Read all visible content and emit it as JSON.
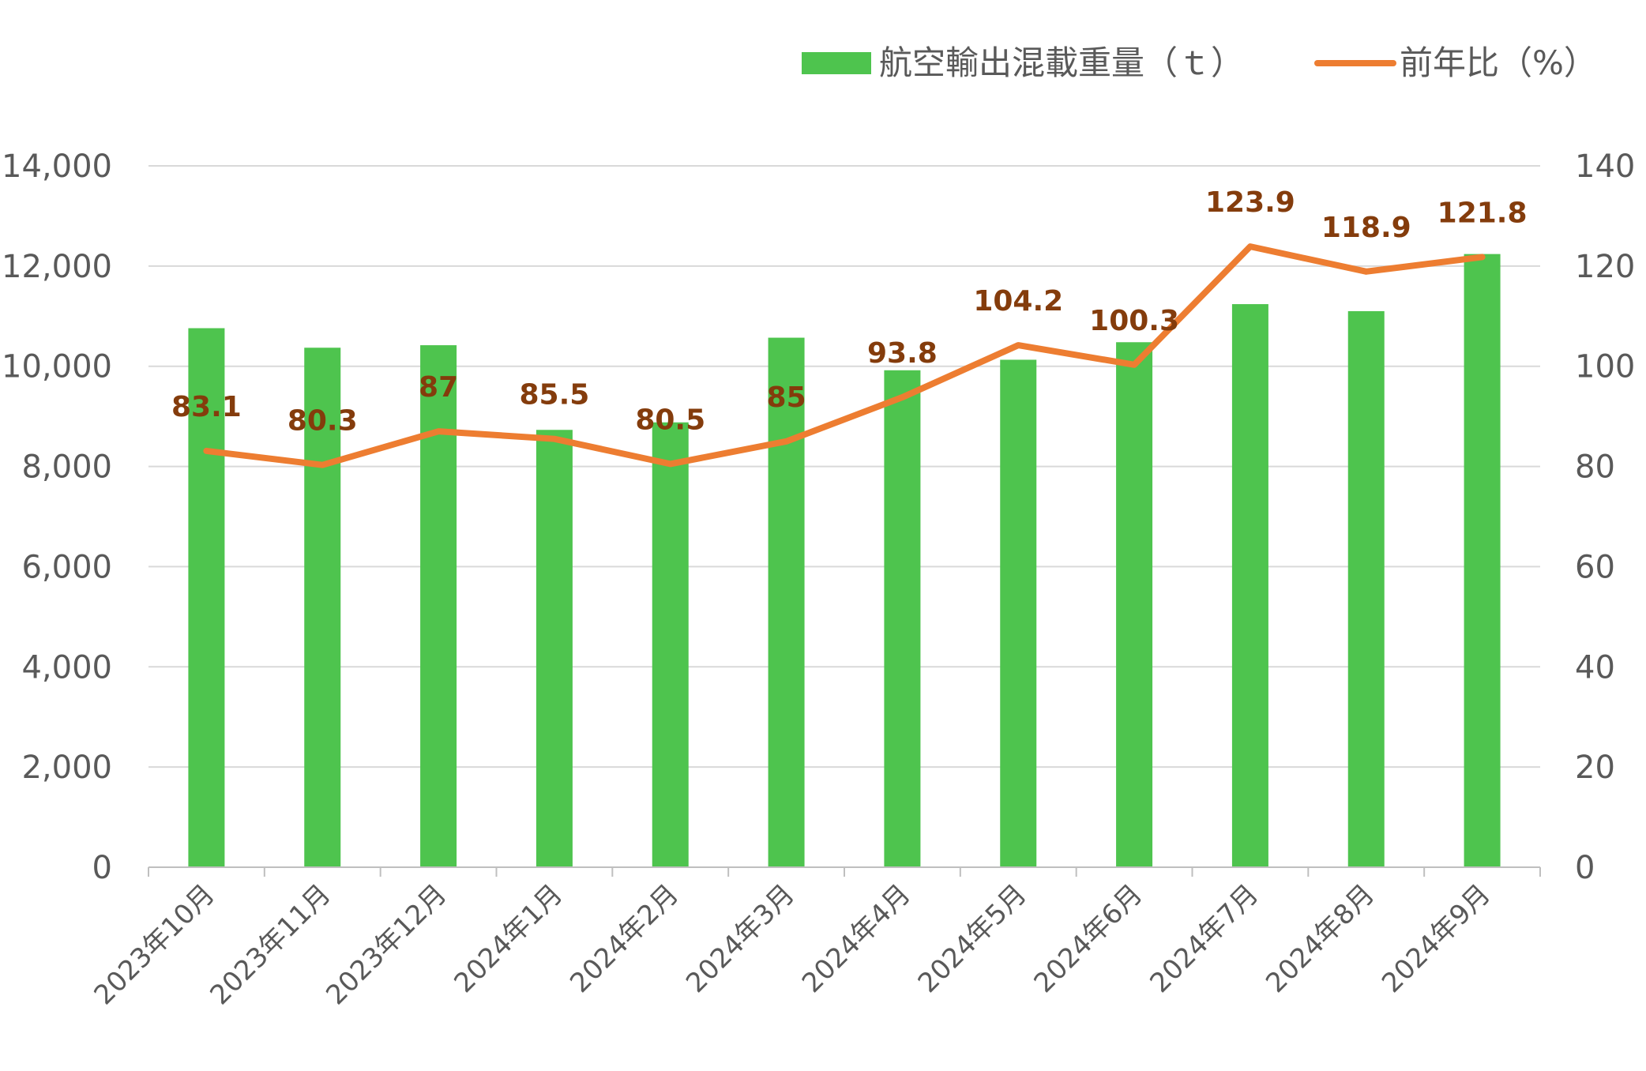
{
  "chart_data": {
    "type": "bar",
    "categories": [
      "2023年10月",
      "2023年11月",
      "2023年12月",
      "2024年1月",
      "2024年2月",
      "2024年3月",
      "2024年4月",
      "2024年5月",
      "2024年6月",
      "2024年7月",
      "2024年8月",
      "2024年9月"
    ],
    "series": [
      {
        "name": "航空輸出混載重量（ｔ）",
        "type": "bar",
        "axis": "left",
        "color": "#4ec44e",
        "values": [
          10760,
          10370,
          10420,
          8730,
          8880,
          10570,
          9920,
          10130,
          10480,
          11240,
          11100,
          12240
        ]
      },
      {
        "name": "前年比（%）",
        "type": "line",
        "axis": "right",
        "color": "#ed7d31",
        "values": [
          83.1,
          80.3,
          87,
          85.5,
          80.5,
          85,
          93.8,
          104.2,
          100.3,
          123.9,
          118.9,
          121.8
        ],
        "labels": [
          "83.1",
          "80.3",
          "87",
          "85.5",
          "80.5",
          "85",
          "93.8",
          "104.2",
          "100.3",
          "123.9",
          "118.9",
          "121.8"
        ]
      }
    ],
    "y_left": {
      "ylim": [
        0,
        14000
      ],
      "ticks": [
        "0",
        "2,000",
        "4,000",
        "6,000",
        "8,000",
        "10,000",
        "12,000",
        "14,000"
      ]
    },
    "y_right": {
      "ylim": [
        0,
        140
      ],
      "ticks": [
        "0",
        "20",
        "40",
        "60",
        "80",
        "100",
        "120",
        "140"
      ]
    },
    "grid": true,
    "legend_position": "top-right",
    "label_color": "#843c0c"
  }
}
